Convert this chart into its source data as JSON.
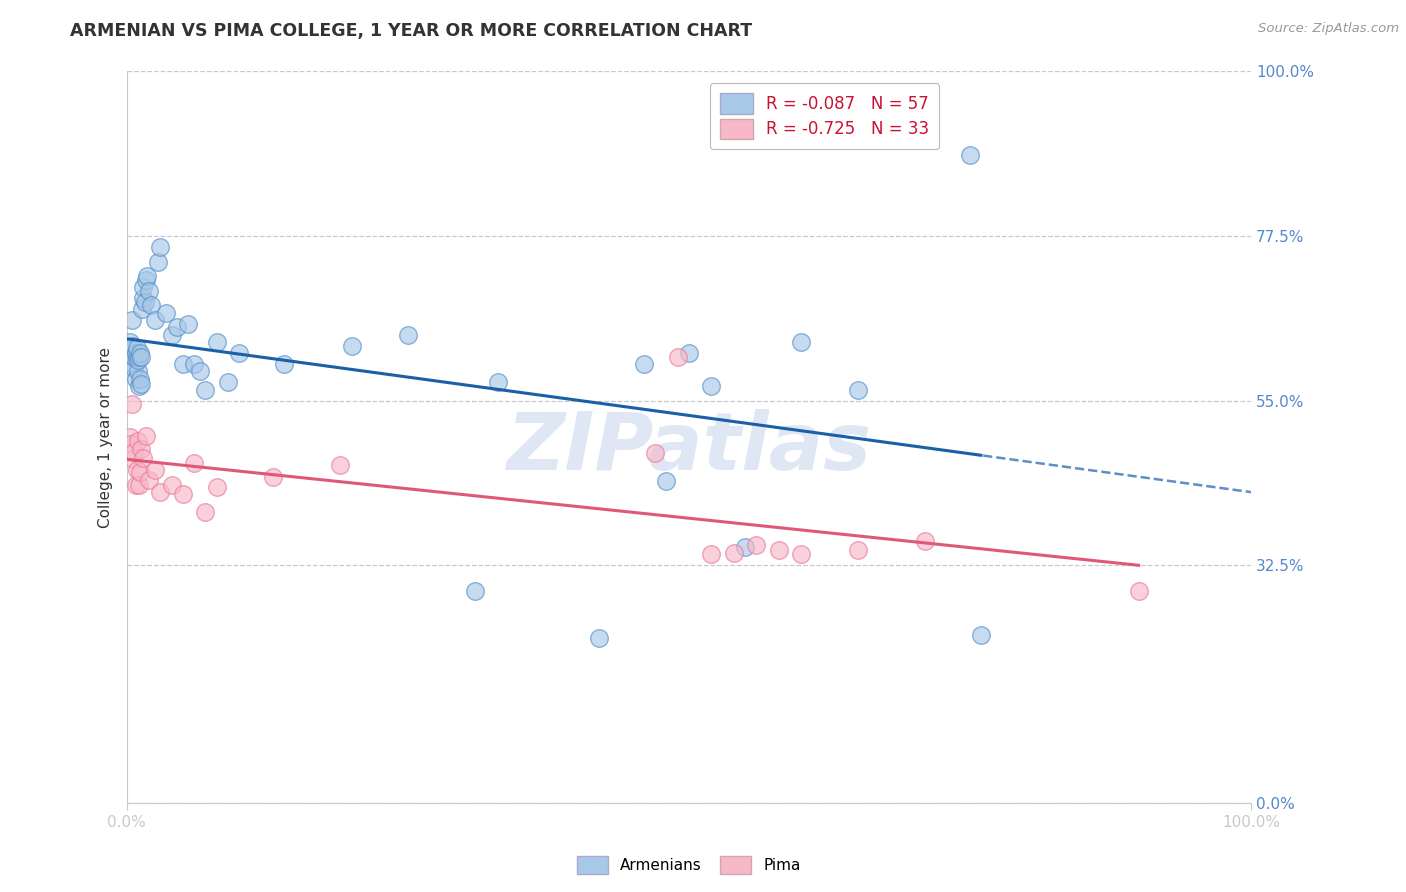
{
  "title": "ARMENIAN VS PIMA COLLEGE, 1 YEAR OR MORE CORRELATION CHART",
  "source": "Source: ZipAtlas.com",
  "ylabel": "College, 1 year or more",
  "right_ytick_vals": [
    0.0,
    0.325,
    0.55,
    0.775,
    1.0
  ],
  "right_yticklabels": [
    "0.0%",
    "32.5%",
    "55.0%",
    "77.5%",
    "100.0%"
  ],
  "armenian_color_fill": "#a8c8e8",
  "armenian_color_edge": "#5590c8",
  "pima_color_fill": "#f8b8c8",
  "pima_color_edge": "#e878a0",
  "armenian_line_color": "#1a5fa8",
  "pima_line_color": "#e05878",
  "grid_color": "#c8c8d0",
  "title_color": "#333333",
  "source_color": "#999999",
  "right_tick_color": "#5588cc",
  "watermark_text": "ZIPatlas",
  "watermark_color": "#c8d8ec",
  "legend_text_color": "#cc1133",
  "armenian_x": [
    0.003,
    0.004,
    0.005,
    0.005,
    0.006,
    0.006,
    0.007,
    0.007,
    0.008,
    0.008,
    0.009,
    0.009,
    0.01,
    0.01,
    0.011,
    0.011,
    0.012,
    0.012,
    0.013,
    0.013,
    0.014,
    0.015,
    0.015,
    0.016,
    0.017,
    0.018,
    0.02,
    0.022,
    0.025,
    0.028,
    0.03,
    0.035,
    0.04,
    0.045,
    0.05,
    0.055,
    0.06,
    0.065,
    0.07,
    0.08,
    0.09,
    0.1,
    0.14,
    0.2,
    0.25,
    0.31,
    0.33,
    0.42,
    0.46,
    0.48,
    0.5,
    0.52,
    0.55,
    0.6,
    0.65,
    0.75,
    0.76
  ],
  "armenian_y": [
    0.63,
    0.61,
    0.62,
    0.66,
    0.6,
    0.625,
    0.595,
    0.61,
    0.58,
    0.615,
    0.608,
    0.622,
    0.59,
    0.605,
    0.57,
    0.61,
    0.58,
    0.615,
    0.572,
    0.61,
    0.675,
    0.69,
    0.705,
    0.685,
    0.715,
    0.72,
    0.7,
    0.68,
    0.66,
    0.74,
    0.76,
    0.67,
    0.64,
    0.65,
    0.6,
    0.655,
    0.6,
    0.59,
    0.565,
    0.63,
    0.575,
    0.615,
    0.6,
    0.625,
    0.64,
    0.29,
    0.575,
    0.225,
    0.6,
    0.44,
    0.615,
    0.57,
    0.35,
    0.63,
    0.565,
    0.885,
    0.23
  ],
  "pima_x": [
    0.003,
    0.004,
    0.005,
    0.006,
    0.007,
    0.008,
    0.009,
    0.01,
    0.011,
    0.012,
    0.013,
    0.015,
    0.017,
    0.02,
    0.025,
    0.03,
    0.04,
    0.05,
    0.06,
    0.07,
    0.08,
    0.13,
    0.19,
    0.47,
    0.49,
    0.52,
    0.54,
    0.56,
    0.58,
    0.6,
    0.65,
    0.71,
    0.9
  ],
  "pima_y": [
    0.5,
    0.49,
    0.545,
    0.47,
    0.48,
    0.435,
    0.455,
    0.495,
    0.435,
    0.452,
    0.484,
    0.472,
    0.502,
    0.442,
    0.455,
    0.425,
    0.435,
    0.422,
    0.465,
    0.397,
    0.432,
    0.445,
    0.462,
    0.478,
    0.61,
    0.34,
    0.342,
    0.353,
    0.345,
    0.34,
    0.345,
    0.358,
    0.29
  ],
  "xlim": [
    0.0,
    1.0
  ],
  "ylim": [
    0.0,
    1.0
  ],
  "figwidth": 14.06,
  "figheight": 8.92,
  "dpi": 100
}
